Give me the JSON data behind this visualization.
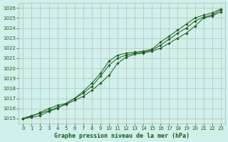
{
  "title": "Graphe pression niveau de la mer (hPa)",
  "bg_color": "#cff0eb",
  "grid_color": "#b8b0b0",
  "line_color": "#1a5c1a",
  "marker": "D",
  "marker_size": 1.8,
  "linewidth": 0.7,
  "xlim": [
    -0.5,
    23.5
  ],
  "ylim": [
    1014.5,
    1026.5
  ],
  "xticks": [
    0,
    1,
    2,
    3,
    4,
    5,
    6,
    7,
    8,
    9,
    10,
    11,
    12,
    13,
    14,
    15,
    16,
    17,
    18,
    19,
    20,
    21,
    22,
    23
  ],
  "yticks": [
    1015,
    1016,
    1017,
    1018,
    1019,
    1020,
    1021,
    1022,
    1023,
    1024,
    1025,
    1026
  ],
  "line1_y": [
    1015.0,
    1015.3,
    1015.5,
    1015.8,
    1016.1,
    1016.4,
    1016.8,
    1017.2,
    1017.8,
    1018.5,
    1019.3,
    1020.5,
    1021.1,
    1021.4,
    1021.5,
    1021.7,
    1022.0,
    1022.5,
    1023.0,
    1023.5,
    1024.2,
    1025.0,
    1025.2,
    1025.6
  ],
  "line2_y": [
    1015.0,
    1015.2,
    1015.6,
    1016.0,
    1016.3,
    1016.5,
    1017.0,
    1017.5,
    1018.2,
    1019.2,
    1020.3,
    1021.0,
    1021.3,
    1021.5,
    1021.6,
    1021.8,
    1022.3,
    1022.9,
    1023.5,
    1024.0,
    1024.7,
    1025.1,
    1025.3,
    1025.8
  ],
  "line3_y": [
    1015.0,
    1015.1,
    1015.3,
    1015.7,
    1016.0,
    1016.5,
    1017.0,
    1017.7,
    1018.5,
    1019.5,
    1020.7,
    1021.3,
    1021.5,
    1021.6,
    1021.7,
    1021.9,
    1022.6,
    1023.2,
    1023.8,
    1024.4,
    1025.0,
    1025.3,
    1025.5,
    1025.9
  ],
  "tick_fontsize": 5.0,
  "xlabel_fontsize": 6.0
}
